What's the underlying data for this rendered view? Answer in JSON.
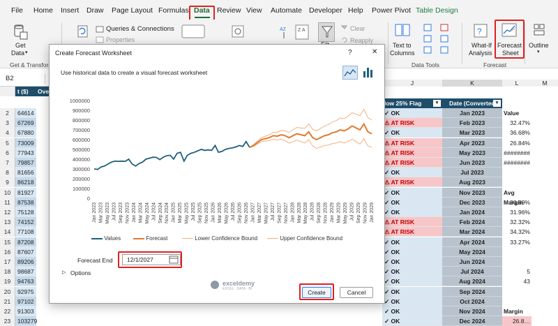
{
  "ribbon_tabs": [
    "File",
    "Home",
    "Insert",
    "Draw",
    "Page Layout",
    "Formulas",
    "Data",
    "Review",
    "View",
    "Automate",
    "Developer",
    "Help",
    "Power Pivot",
    "Table Design"
  ],
  "ribbon": {
    "get_data": "Get",
    "get_data2": "Data",
    "get_transform": "Get & Transform",
    "queries": "Queries & Connections",
    "properties": "Properties",
    "clear": "Clear",
    "reapply": "Reapply",
    "text_to_columns_1": "Text to",
    "text_to_columns_2": "Columns",
    "data_tools": "Data Tools",
    "what_if_1": "What-If",
    "what_if_2": "Analysis",
    "forecast_sheet_1": "Forecast",
    "forecast_sheet_2": "Sheet",
    "forecast_group": "Forecast",
    "outline": "Outline",
    "filter": "Filt"
  },
  "name_box": "B2",
  "grid": {
    "headers": {
      "col_b": "t ($)",
      "col_c": "Ove",
      "col_j_letter": "J",
      "col_k_letter": "K",
      "col_l_letter": "L",
      "col_m_letter": "M",
      "col_j": "low 25% Flag",
      "col_k": "Date (Converted)"
    },
    "rows": [
      {
        "n": "2",
        "b": "64614",
        "j": "✓ OK",
        "k": "Jan 2023",
        "l": "Value"
      },
      {
        "n": "3",
        "b": "67269",
        "j": "⚠ AT RISK",
        "k": "Feb 2023",
        "l": "32.47%"
      },
      {
        "n": "4",
        "b": "67880",
        "j": "✓ OK",
        "k": "Mar 2023",
        "l": "36.68%"
      },
      {
        "n": "5",
        "b": "73009",
        "j": "⚠ AT RISK",
        "k": "Apr 2023",
        "l": "26.84%"
      },
      {
        "n": "6",
        "b": "77943",
        "j": "⚠ AT RISK",
        "k": "May 2023",
        "l": "########"
      },
      {
        "n": "7",
        "b": "79857",
        "j": "⚠ AT RISK",
        "k": "Jun 2023",
        "l": "########"
      },
      {
        "n": "8",
        "b": "81656",
        "j": "✓ OK",
        "k": "Jul 2023",
        "l": ""
      },
      {
        "n": "9",
        "b": "86218",
        "j": "⚠ AT RISK",
        "k": "Aug 2023",
        "l": ""
      },
      {
        "n": "10",
        "b": "81927",
        "j": "✓ OK",
        "k": "Nov 2023",
        "l": "Avg Margin"
      },
      {
        "n": "11",
        "b": "87538",
        "j": "✓ OK",
        "k": "Dec 2023",
        "l": "30.89%"
      },
      {
        "n": "12",
        "b": "75128",
        "j": "✓ OK",
        "k": "Jan 2024",
        "l": "31.96%"
      },
      {
        "n": "13",
        "b": "74152",
        "j": "⚠ AT RISK",
        "k": "Feb 2024",
        "l": "32.32%"
      },
      {
        "n": "14",
        "b": "77108",
        "j": "⚠ AT RISK",
        "k": "Mar 2024",
        "l": "34.32%"
      },
      {
        "n": "15",
        "b": "87208",
        "j": "✓ OK",
        "k": "Apr 2024",
        "l": "33.27%"
      },
      {
        "n": "16",
        "b": "87607",
        "j": "✓ OK",
        "k": "May 2024",
        "l": ""
      },
      {
        "n": "17",
        "b": "89206",
        "j": "✓ OK",
        "k": "Jun 2024",
        "l": ""
      },
      {
        "n": "18",
        "b": "98687",
        "j": "✓ OK",
        "k": "Jul 2024",
        "l": "5"
      },
      {
        "n": "19",
        "b": "94763",
        "j": "✓ OK",
        "k": "Aug 2024",
        "l": "43"
      },
      {
        "n": "20",
        "b": "92975",
        "j": "✓ OK",
        "k": "Sep 2024",
        "l": ""
      },
      {
        "n": "21",
        "b": "97102",
        "j": "✓ OK",
        "k": "Oct 2024",
        "l": ""
      },
      {
        "n": "22",
        "b": "91303",
        "j": "✓ OK",
        "k": "Nov 2024",
        "l": "Margin"
      },
      {
        "n": "23",
        "b": "103279",
        "j": "✓ OK",
        "k": "Dec 2024",
        "l": "26.8…"
      }
    ]
  },
  "dialog": {
    "title": "Create Forecast Worksheet",
    "help": "?",
    "close": "✕",
    "description": "Use historical data to create a visual forecast worksheet",
    "forecast_end_label": "Forecast End",
    "forecast_end_value": "12/1/2027",
    "options_label": "Options",
    "create_button": "Create",
    "cancel_button": "Cancel",
    "watermark_name": "exceldemy",
    "watermark_tag": "EXCEL · DATA · BI"
  },
  "chart_data": {
    "type": "line",
    "y_ticks": [
      "1000000",
      "900000",
      "800000",
      "700000",
      "600000",
      "500000",
      "400000",
      "300000",
      "200000",
      "100000",
      "0"
    ],
    "ylim": [
      0,
      1000000
    ],
    "x_tick_labels": [
      "Jan 2023",
      "Mar 2023",
      "May 2023",
      "Jul 2023",
      "Sep 2023",
      "Nov 2023",
      "Jan 2024",
      "Mar 2024",
      "May 2024",
      "Jul 2024",
      "Sep 2024",
      "Nov 2024",
      "Jan 2025",
      "Mar 2025",
      "May 2025",
      "Jul 2025",
      "Sep 2025",
      "Nov 2025",
      "Jan 2026",
      "Mar 2026",
      "May 2026",
      "Jul 2026",
      "Sep 2026",
      "Nov 2026",
      "Jan 2027",
      "Mar 2027",
      "May 2027",
      "Jul 2027",
      "Sep 2027",
      "Nov 2027",
      "Jan 2028",
      "Mar 2028",
      "May 2028",
      "Jul 2028",
      "Sep 2028",
      "Nov 2028",
      "Jan 2029",
      "Mar 2029",
      "May 2029",
      "Jul 2029",
      "Sep 2029",
      "Nov 2029",
      "Jan 2029"
    ],
    "series": [
      {
        "name": "Values",
        "color": "#1f5f7f",
        "values": [
          300000,
          295000,
          320000,
          330000,
          350000,
          370000,
          380000,
          378000,
          380000,
          378000,
          400000,
          350000,
          330000,
          355000,
          370000,
          400000,
          410000,
          420000,
          418000,
          395000,
          420000,
          435000,
          440000,
          400000,
          460000,
          470000,
          380000,
          440000,
          460000,
          470000,
          485000,
          500000,
          490000,
          495000,
          490000,
          540000,
          470000,
          480000,
          500000,
          510000,
          515000,
          525000,
          540000,
          530000,
          580000,
          520000
        ]
      },
      {
        "name": "Forecast",
        "color": "#e07a2f",
        "values": [
          520000,
          540000,
          570000,
          600000,
          610000,
          620000,
          640000,
          635000,
          650000,
          640000,
          620000,
          640000,
          660000,
          650000,
          640000,
          680000,
          620000,
          600000,
          620000,
          640000,
          650000,
          670000,
          680000,
          700000,
          690000,
          710000,
          740000,
          720000,
          700000,
          760000,
          680000,
          660000
        ]
      },
      {
        "name": "Lower Confidence Bound",
        "color": "#f2b183",
        "values": [
          520000,
          530000,
          555000,
          580000,
          585000,
          590000,
          605000,
          595000,
          605000,
          590000,
          565000,
          580000,
          595000,
          580000,
          565000,
          600000,
          535000,
          510000,
          525000,
          540000,
          545000,
          560000,
          565000,
          580000,
          565000,
          580000,
          605000,
          580000,
          555000,
          610000,
          535000,
          520000
        ]
      },
      {
        "name": "Upper Confidence Bound",
        "color": "#f2b183",
        "values": [
          520000,
          550000,
          585000,
          620000,
          635000,
          650000,
          675000,
          675000,
          695000,
          690000,
          675000,
          700000,
          725000,
          720000,
          715000,
          760000,
          705000,
          690000,
          715000,
          740000,
          755000,
          780000,
          795000,
          820000,
          815000,
          840000,
          875000,
          860000,
          845000,
          910000,
          825000,
          800000
        ]
      }
    ]
  },
  "colors": {
    "accent": "#1e6b3a",
    "highlight_red": "#e02020",
    "risk_fill": "#f7c6c9",
    "ok_fill": "#d9e7f3",
    "date_fill": "#b8c3cd"
  }
}
